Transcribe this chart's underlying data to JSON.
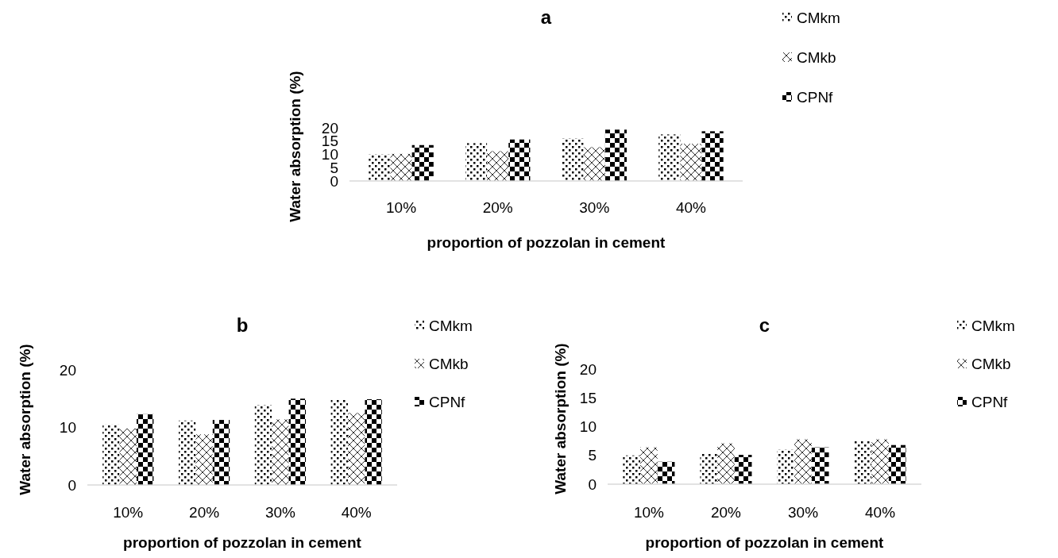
{
  "chart_data": [
    {
      "type": "bar",
      "title": "a",
      "xlabel": "proportion of pozzolan in cement",
      "ylabel": "Water absorption (%)",
      "categories": [
        "10%",
        "20%",
        "30%",
        "40%"
      ],
      "series": [
        {
          "name": "CMkm",
          "color": "#000000",
          "values": [
            10,
            14.2,
            16,
            17.5
          ]
        },
        {
          "name": "CMkb",
          "color": "#000000",
          "values": [
            10.2,
            11.2,
            12.7,
            14
          ]
        },
        {
          "name": "CPNf",
          "color": "#000000",
          "values": [
            13.5,
            15.6,
            19.3,
            18.7
          ]
        }
      ],
      "ylim": [
        0,
        20
      ],
      "yticks": [
        0,
        5,
        10,
        15,
        20
      ],
      "grid": false,
      "legend": "right"
    },
    {
      "type": "bar",
      "title": "b",
      "xlabel": "proportion of pozzolan in cement",
      "ylabel": "Water absorption (%)",
      "categories": [
        "10%",
        "20%",
        "30%",
        "40%"
      ],
      "series": [
        {
          "name": "CMkm",
          "color": "#000000",
          "values": [
            10.5,
            11.2,
            13.9,
            14.8
          ]
        },
        {
          "name": "CMkb",
          "color": "#000000",
          "values": [
            9.8,
            8.8,
            11.4,
            12.5
          ]
        },
        {
          "name": "CPNf",
          "color": "#000000",
          "values": [
            12.3,
            11.3,
            15,
            14.9
          ]
        }
      ],
      "ylim": [
        0,
        20
      ],
      "yticks": [
        0,
        10,
        20
      ],
      "grid": false,
      "legend": "right"
    },
    {
      "type": "bar",
      "title": "c",
      "xlabel": "proportion of pozzolan in cement",
      "ylabel": "Water absorption (%)",
      "categories": [
        "10%",
        "20%",
        "30%",
        "40%"
      ],
      "series": [
        {
          "name": "CMkm",
          "color": "#000000",
          "values": [
            5,
            5.3,
            6,
            7.5
          ]
        },
        {
          "name": "CMkb",
          "color": "#000000",
          "values": [
            6.4,
            7.1,
            7.8,
            7.8
          ]
        },
        {
          "name": "CPNf",
          "color": "#000000",
          "values": [
            3.9,
            5.1,
            6.4,
            6.8
          ]
        }
      ],
      "ylim": [
        0,
        20
      ],
      "yticks": [
        0,
        5,
        10,
        15,
        20
      ],
      "grid": false,
      "legend": "right"
    }
  ]
}
